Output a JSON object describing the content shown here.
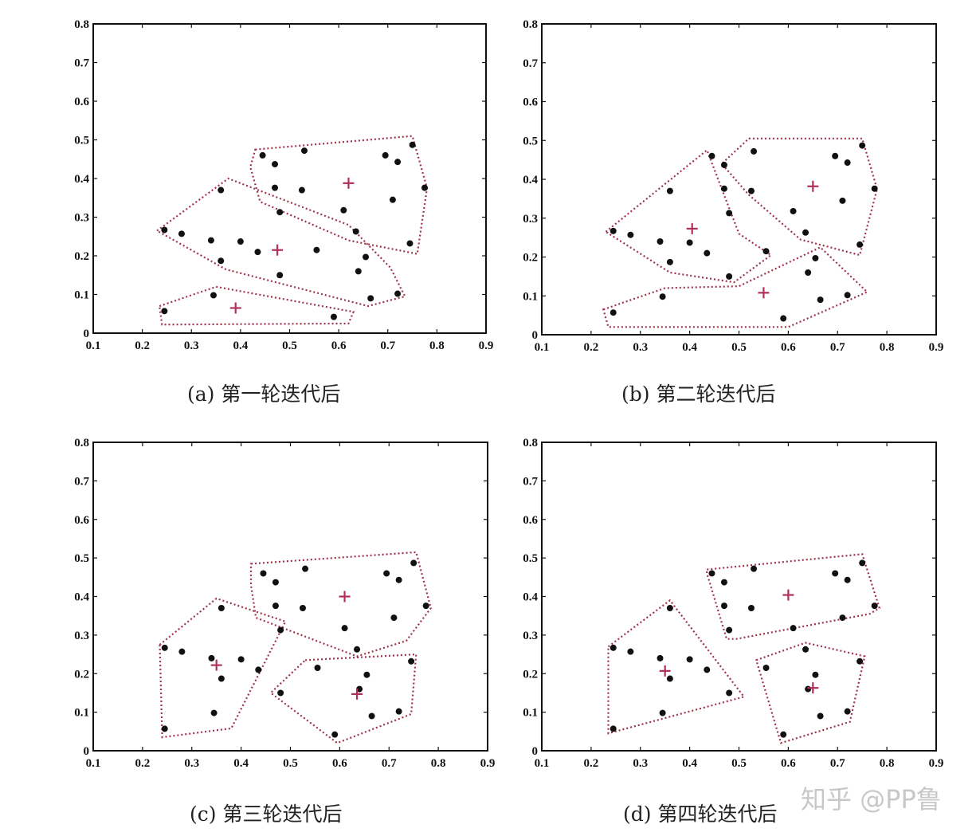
{
  "chart_data": [
    {
      "type": "scatter",
      "caption": "(a) 第一轮迭代后",
      "xlim": [
        0.1,
        0.9
      ],
      "ylim": [
        0,
        0.8
      ],
      "xticks": [
        "0.1",
        "0.2",
        "0.3",
        "0.4",
        "0.5",
        "0.6",
        "0.7",
        "0.8",
        "0.9"
      ],
      "yticks": [
        "0",
        "0.1",
        "0.2",
        "0.3",
        "0.4",
        "0.5",
        "0.6",
        "0.7",
        "0.8"
      ],
      "points": [
        [
          0.245,
          0.267
        ],
        [
          0.28,
          0.257
        ],
        [
          0.34,
          0.24
        ],
        [
          0.36,
          0.37
        ],
        [
          0.36,
          0.187
        ],
        [
          0.4,
          0.237
        ],
        [
          0.435,
          0.21
        ],
        [
          0.445,
          0.46
        ],
        [
          0.47,
          0.437
        ],
        [
          0.47,
          0.376
        ],
        [
          0.48,
          0.313
        ],
        [
          0.48,
          0.15
        ],
        [
          0.525,
          0.37
        ],
        [
          0.53,
          0.472
        ],
        [
          0.555,
          0.215
        ],
        [
          0.61,
          0.318
        ],
        [
          0.635,
          0.263
        ],
        [
          0.64,
          0.16
        ],
        [
          0.655,
          0.197
        ],
        [
          0.665,
          0.09
        ],
        [
          0.695,
          0.46
        ],
        [
          0.71,
          0.345
        ],
        [
          0.72,
          0.443
        ],
        [
          0.72,
          0.102
        ],
        [
          0.745,
          0.232
        ],
        [
          0.75,
          0.487
        ],
        [
          0.775,
          0.376
        ],
        [
          0.245,
          0.057
        ],
        [
          0.345,
          0.098
        ],
        [
          0.59,
          0.042
        ]
      ],
      "centroids": [
        [
          0.62,
          0.388
        ],
        [
          0.475,
          0.215
        ],
        [
          0.39,
          0.065
        ]
      ],
      "clusters": [
        [
          [
            0.43,
            0.475
          ],
          [
            0.75,
            0.51
          ],
          [
            0.78,
            0.375
          ],
          [
            0.76,
            0.205
          ],
          [
            0.62,
            0.24
          ],
          [
            0.44,
            0.34
          ],
          [
            0.42,
            0.43
          ]
        ],
        [
          [
            0.23,
            0.265
          ],
          [
            0.375,
            0.4
          ],
          [
            0.62,
            0.28
          ],
          [
            0.705,
            0.17
          ],
          [
            0.735,
            0.095
          ],
          [
            0.66,
            0.07
          ],
          [
            0.37,
            0.165
          ]
        ],
        [
          [
            0.235,
            0.07
          ],
          [
            0.35,
            0.12
          ],
          [
            0.63,
            0.055
          ],
          [
            0.62,
            0.025
          ],
          [
            0.24,
            0.022
          ]
        ]
      ]
    },
    {
      "type": "scatter",
      "caption": "(b) 第二轮迭代后",
      "xlim": [
        0.1,
        0.9
      ],
      "ylim": [
        0,
        0.8
      ],
      "xticks": [
        "0.1",
        "0.2",
        "0.3",
        "0.4",
        "0.5",
        "0.6",
        "0.7",
        "0.8",
        "0.9"
      ],
      "yticks": [
        "0",
        "0.1",
        "0.2",
        "0.3",
        "0.4",
        "0.5",
        "0.6",
        "0.7",
        "0.8"
      ],
      "points": [
        [
          0.245,
          0.267
        ],
        [
          0.28,
          0.257
        ],
        [
          0.34,
          0.24
        ],
        [
          0.36,
          0.37
        ],
        [
          0.36,
          0.187
        ],
        [
          0.4,
          0.237
        ],
        [
          0.435,
          0.21
        ],
        [
          0.445,
          0.46
        ],
        [
          0.47,
          0.437
        ],
        [
          0.47,
          0.376
        ],
        [
          0.48,
          0.313
        ],
        [
          0.48,
          0.15
        ],
        [
          0.525,
          0.37
        ],
        [
          0.53,
          0.472
        ],
        [
          0.555,
          0.215
        ],
        [
          0.61,
          0.318
        ],
        [
          0.635,
          0.263
        ],
        [
          0.64,
          0.16
        ],
        [
          0.655,
          0.197
        ],
        [
          0.665,
          0.09
        ],
        [
          0.695,
          0.46
        ],
        [
          0.71,
          0.345
        ],
        [
          0.72,
          0.443
        ],
        [
          0.72,
          0.102
        ],
        [
          0.745,
          0.232
        ],
        [
          0.75,
          0.487
        ],
        [
          0.775,
          0.376
        ],
        [
          0.245,
          0.057
        ],
        [
          0.345,
          0.098
        ],
        [
          0.59,
          0.042
        ]
      ],
      "centroids": [
        [
          0.65,
          0.382
        ],
        [
          0.405,
          0.273
        ],
        [
          0.55,
          0.108
        ]
      ],
      "clusters": [
        [
          [
            0.52,
            0.505
          ],
          [
            0.75,
            0.505
          ],
          [
            0.78,
            0.375
          ],
          [
            0.745,
            0.205
          ],
          [
            0.625,
            0.245
          ],
          [
            0.52,
            0.36
          ],
          [
            0.465,
            0.44
          ]
        ],
        [
          [
            0.23,
            0.265
          ],
          [
            0.435,
            0.475
          ],
          [
            0.5,
            0.26
          ],
          [
            0.565,
            0.205
          ],
          [
            0.49,
            0.135
          ],
          [
            0.36,
            0.16
          ]
        ],
        [
          [
            0.225,
            0.065
          ],
          [
            0.35,
            0.12
          ],
          [
            0.5,
            0.125
          ],
          [
            0.665,
            0.225
          ],
          [
            0.76,
            0.11
          ],
          [
            0.6,
            0.02
          ],
          [
            0.235,
            0.02
          ]
        ]
      ]
    },
    {
      "type": "scatter",
      "caption": "(c) 第三轮迭代后",
      "xlim": [
        0.1,
        0.9
      ],
      "ylim": [
        0,
        0.8
      ],
      "xticks": [
        "0.1",
        "0.2",
        "0.3",
        "0.4",
        "0.5",
        "0.6",
        "0.7",
        "0.8",
        "0.9"
      ],
      "yticks": [
        "0",
        "0.1",
        "0.2",
        "0.3",
        "0.4",
        "0.5",
        "0.6",
        "0.7",
        "0.8"
      ],
      "points": [
        [
          0.245,
          0.267
        ],
        [
          0.28,
          0.257
        ],
        [
          0.34,
          0.24
        ],
        [
          0.36,
          0.37
        ],
        [
          0.36,
          0.187
        ],
        [
          0.4,
          0.237
        ],
        [
          0.435,
          0.21
        ],
        [
          0.445,
          0.46
        ],
        [
          0.47,
          0.437
        ],
        [
          0.47,
          0.376
        ],
        [
          0.48,
          0.313
        ],
        [
          0.48,
          0.15
        ],
        [
          0.525,
          0.37
        ],
        [
          0.53,
          0.472
        ],
        [
          0.555,
          0.215
        ],
        [
          0.61,
          0.318
        ],
        [
          0.635,
          0.263
        ],
        [
          0.64,
          0.16
        ],
        [
          0.655,
          0.197
        ],
        [
          0.665,
          0.09
        ],
        [
          0.695,
          0.46
        ],
        [
          0.71,
          0.345
        ],
        [
          0.72,
          0.443
        ],
        [
          0.72,
          0.102
        ],
        [
          0.745,
          0.232
        ],
        [
          0.75,
          0.487
        ],
        [
          0.775,
          0.376
        ],
        [
          0.245,
          0.057
        ],
        [
          0.345,
          0.098
        ],
        [
          0.59,
          0.042
        ]
      ],
      "centroids": [
        [
          0.61,
          0.4
        ],
        [
          0.35,
          0.222
        ],
        [
          0.635,
          0.147
        ]
      ],
      "clusters": [
        [
          [
            0.42,
            0.485
          ],
          [
            0.755,
            0.515
          ],
          [
            0.785,
            0.37
          ],
          [
            0.735,
            0.285
          ],
          [
            0.635,
            0.245
          ],
          [
            0.43,
            0.345
          ],
          [
            0.42,
            0.43
          ]
        ],
        [
          [
            0.235,
            0.275
          ],
          [
            0.35,
            0.395
          ],
          [
            0.49,
            0.335
          ],
          [
            0.38,
            0.058
          ],
          [
            0.24,
            0.035
          ]
        ],
        [
          [
            0.53,
            0.235
          ],
          [
            0.755,
            0.25
          ],
          [
            0.745,
            0.095
          ],
          [
            0.595,
            0.02
          ],
          [
            0.46,
            0.15
          ]
        ]
      ]
    },
    {
      "type": "scatter",
      "caption": "(d) 第四轮迭代后",
      "xlim": [
        0.1,
        0.9
      ],
      "ylim": [
        0,
        0.8
      ],
      "xticks": [
        "0.1",
        "0.2",
        "0.3",
        "0.4",
        "0.5",
        "0.6",
        "0.7",
        "0.8",
        "0.9"
      ],
      "yticks": [
        "0",
        "0.1",
        "0.2",
        "0.3",
        "0.4",
        "0.5",
        "0.6",
        "0.7",
        "0.8"
      ],
      "points": [
        [
          0.245,
          0.267
        ],
        [
          0.28,
          0.257
        ],
        [
          0.34,
          0.24
        ],
        [
          0.36,
          0.37
        ],
        [
          0.36,
          0.187
        ],
        [
          0.4,
          0.237
        ],
        [
          0.435,
          0.21
        ],
        [
          0.445,
          0.46
        ],
        [
          0.47,
          0.437
        ],
        [
          0.47,
          0.376
        ],
        [
          0.48,
          0.313
        ],
        [
          0.48,
          0.15
        ],
        [
          0.525,
          0.37
        ],
        [
          0.53,
          0.472
        ],
        [
          0.555,
          0.215
        ],
        [
          0.61,
          0.318
        ],
        [
          0.635,
          0.263
        ],
        [
          0.64,
          0.16
        ],
        [
          0.655,
          0.197
        ],
        [
          0.665,
          0.09
        ],
        [
          0.695,
          0.46
        ],
        [
          0.71,
          0.345
        ],
        [
          0.72,
          0.443
        ],
        [
          0.72,
          0.102
        ],
        [
          0.745,
          0.232
        ],
        [
          0.75,
          0.487
        ],
        [
          0.775,
          0.376
        ],
        [
          0.245,
          0.057
        ],
        [
          0.345,
          0.098
        ],
        [
          0.59,
          0.042
        ]
      ],
      "centroids": [
        [
          0.6,
          0.404
        ],
        [
          0.35,
          0.207
        ],
        [
          0.65,
          0.163
        ]
      ],
      "clusters": [
        [
          [
            0.435,
            0.47
          ],
          [
            0.75,
            0.51
          ],
          [
            0.785,
            0.37
          ],
          [
            0.765,
            0.355
          ],
          [
            0.495,
            0.29
          ],
          [
            0.475,
            0.29
          ],
          [
            0.435,
            0.46
          ]
        ],
        [
          [
            0.235,
            0.27
          ],
          [
            0.36,
            0.39
          ],
          [
            0.51,
            0.14
          ],
          [
            0.235,
            0.045
          ]
        ],
        [
          [
            0.535,
            0.235
          ],
          [
            0.635,
            0.28
          ],
          [
            0.755,
            0.245
          ],
          [
            0.725,
            0.075
          ],
          [
            0.585,
            0.02
          ]
        ]
      ]
    }
  ],
  "watermark": "知乎 @PP鲁"
}
